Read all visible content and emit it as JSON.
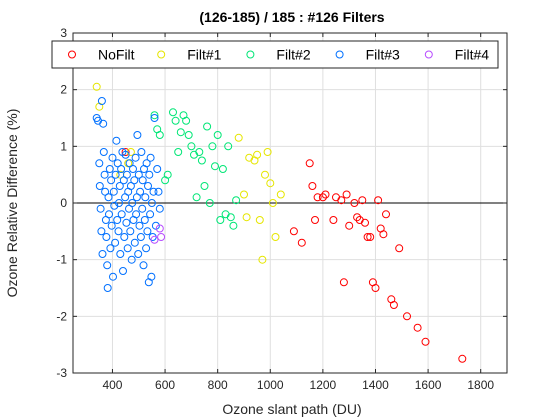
{
  "chart_data": {
    "type": "scatter",
    "title": "(126-185) / 185 : #126 Filters",
    "xlabel": "Ozone slant path (DU)",
    "ylabel": "Ozone Relative Difference (%)",
    "xlim": [
      250,
      1900
    ],
    "ylim": [
      -3,
      3
    ],
    "xticks": [
      400,
      600,
      800,
      1000,
      1200,
      1400,
      1600,
      1800
    ],
    "yticks": [
      -3,
      -2,
      -1,
      0,
      1,
      2,
      3
    ],
    "grid": true,
    "legend_position": "top",
    "zero_line": true,
    "series": [
      {
        "name": "NoFilt",
        "color": "#ff0000",
        "points": [
          [
            450,
            0.9
          ],
          [
            1090,
            -0.5
          ],
          [
            1120,
            -0.7
          ],
          [
            1150,
            0.7
          ],
          [
            1160,
            0.3
          ],
          [
            1170,
            -0.3
          ],
          [
            1180,
            0.1
          ],
          [
            1200,
            0.1
          ],
          [
            1210,
            0.15
          ],
          [
            1240,
            -0.3
          ],
          [
            1250,
            0.1
          ],
          [
            1270,
            0.05
          ],
          [
            1280,
            -1.4
          ],
          [
            1290,
            0.15
          ],
          [
            1300,
            -0.4
          ],
          [
            1320,
            0.0
          ],
          [
            1330,
            -0.25
          ],
          [
            1340,
            -0.3
          ],
          [
            1350,
            0.05
          ],
          [
            1360,
            -0.35
          ],
          [
            1370,
            -0.6
          ],
          [
            1380,
            -0.6
          ],
          [
            1390,
            -1.4
          ],
          [
            1400,
            -1.5
          ],
          [
            1410,
            0.05
          ],
          [
            1420,
            -0.45
          ],
          [
            1430,
            -0.55
          ],
          [
            1440,
            -0.2
          ],
          [
            1460,
            -1.7
          ],
          [
            1470,
            -1.8
          ],
          [
            1490,
            -0.8
          ],
          [
            1520,
            -2.0
          ],
          [
            1560,
            -2.2
          ],
          [
            1590,
            -2.45
          ],
          [
            1730,
            -2.75
          ]
        ]
      },
      {
        "name": "Filt#1",
        "color": "#e6e600",
        "points": [
          [
            340,
            2.05
          ],
          [
            350,
            1.7
          ],
          [
            430,
            0.5
          ],
          [
            460,
            0.7
          ],
          [
            470,
            0.9
          ],
          [
            880,
            1.15
          ],
          [
            900,
            0.15
          ],
          [
            910,
            -0.25
          ],
          [
            920,
            0.8
          ],
          [
            940,
            0.75
          ],
          [
            950,
            0.85
          ],
          [
            960,
            -0.3
          ],
          [
            970,
            -1.0
          ],
          [
            980,
            0.5
          ],
          [
            990,
            0.9
          ],
          [
            1000,
            0.35
          ],
          [
            1010,
            0.0
          ],
          [
            1020,
            -0.6
          ],
          [
            1040,
            0.15
          ]
        ]
      },
      {
        "name": "Filt#2",
        "color": "#00e676",
        "points": [
          [
            560,
            1.55
          ],
          [
            570,
            1.3
          ],
          [
            580,
            1.2
          ],
          [
            600,
            0.4
          ],
          [
            610,
            0.5
          ],
          [
            630,
            1.6
          ],
          [
            640,
            1.45
          ],
          [
            650,
            0.9
          ],
          [
            660,
            1.25
          ],
          [
            670,
            1.55
          ],
          [
            680,
            1.45
          ],
          [
            690,
            1.2
          ],
          [
            700,
            1.0
          ],
          [
            710,
            0.85
          ],
          [
            720,
            0.1
          ],
          [
            730,
            0.9
          ],
          [
            740,
            0.75
          ],
          [
            750,
            0.3
          ],
          [
            760,
            1.35
          ],
          [
            770,
            0.0
          ],
          [
            780,
            1.0
          ],
          [
            790,
            0.65
          ],
          [
            800,
            1.2
          ],
          [
            810,
            -0.3
          ],
          [
            820,
            0.6
          ],
          [
            830,
            -0.2
          ],
          [
            840,
            1.0
          ],
          [
            850,
            -0.25
          ],
          [
            860,
            -0.4
          ],
          [
            870,
            0.05
          ]
        ]
      },
      {
        "name": "Filt#3",
        "color": "#0070ff",
        "points": [
          [
            340,
            1.5
          ],
          [
            345,
            1.45
          ],
          [
            350,
            0.7
          ],
          [
            352,
            0.3
          ],
          [
            355,
            -0.1
          ],
          [
            358,
            -0.5
          ],
          [
            360,
            1.8
          ],
          [
            362,
            -0.9
          ],
          [
            365,
            1.4
          ],
          [
            367,
            0.9
          ],
          [
            370,
            0.5
          ],
          [
            372,
            0.2
          ],
          [
            375,
            -0.3
          ],
          [
            377,
            -0.6
          ],
          [
            380,
            -1.1
          ],
          [
            382,
            -1.5
          ],
          [
            385,
            0.1
          ],
          [
            387,
            -0.2
          ],
          [
            390,
            0.6
          ],
          [
            392,
            -0.8
          ],
          [
            395,
            0.4
          ],
          [
            397,
            -0.4
          ],
          [
            400,
            0.8
          ],
          [
            402,
            -1.3
          ],
          [
            405,
            0.2
          ],
          [
            407,
            -0.05
          ],
          [
            410,
            -0.7
          ],
          [
            412,
            0.5
          ],
          [
            415,
            1.1
          ],
          [
            418,
            -0.3
          ],
          [
            420,
            0.7
          ],
          [
            423,
            -0.5
          ],
          [
            425,
            0.0
          ],
          [
            428,
            0.3
          ],
          [
            430,
            -0.9
          ],
          [
            433,
            0.6
          ],
          [
            435,
            -0.2
          ],
          [
            438,
            0.9
          ],
          [
            440,
            -1.2
          ],
          [
            443,
            0.4
          ],
          [
            445,
            -0.6
          ],
          [
            448,
            0.1
          ],
          [
            450,
            0.85
          ],
          [
            453,
            -0.35
          ],
          [
            455,
            0.5
          ],
          [
            458,
            -0.8
          ],
          [
            460,
            0.2
          ],
          [
            463,
            -0.1
          ],
          [
            465,
            0.7
          ],
          [
            468,
            -0.5
          ],
          [
            470,
            0.3
          ],
          [
            473,
            -1.0
          ],
          [
            475,
            0.0
          ],
          [
            478,
            0.6
          ],
          [
            480,
            -0.3
          ],
          [
            483,
            0.4
          ],
          [
            485,
            -0.7
          ],
          [
            488,
            0.8
          ],
          [
            490,
            -0.2
          ],
          [
            493,
            0.1
          ],
          [
            495,
            1.2
          ],
          [
            498,
            -0.9
          ],
          [
            500,
            0.5
          ],
          [
            503,
            -0.4
          ],
          [
            505,
            0.2
          ],
          [
            508,
            -0.6
          ],
          [
            510,
            0.9
          ],
          [
            513,
            -0.1
          ],
          [
            515,
            0.4
          ],
          [
            518,
            -1.1
          ],
          [
            520,
            0.6
          ],
          [
            523,
            -0.3
          ],
          [
            525,
            0.1
          ],
          [
            528,
            -0.8
          ],
          [
            530,
            0.7
          ],
          [
            533,
            -0.5
          ],
          [
            535,
            0.3
          ],
          [
            538,
            -1.4
          ],
          [
            540,
            0.5
          ],
          [
            543,
            -0.2
          ],
          [
            545,
            0.8
          ],
          [
            548,
            -1.3
          ],
          [
            550,
            0.0
          ],
          [
            553,
            -0.6
          ],
          [
            556,
            0.2
          ],
          [
            560,
            1.5
          ],
          [
            565,
            -0.4
          ],
          [
            570,
            0.6
          ],
          [
            575,
            0.2
          ],
          [
            580,
            -0.1
          ]
        ]
      },
      {
        "name": "Filt#4",
        "color": "#b84dff",
        "points": [
          [
            560,
            -0.65
          ],
          [
            580,
            -0.45
          ],
          [
            585,
            -0.6
          ]
        ]
      }
    ]
  }
}
